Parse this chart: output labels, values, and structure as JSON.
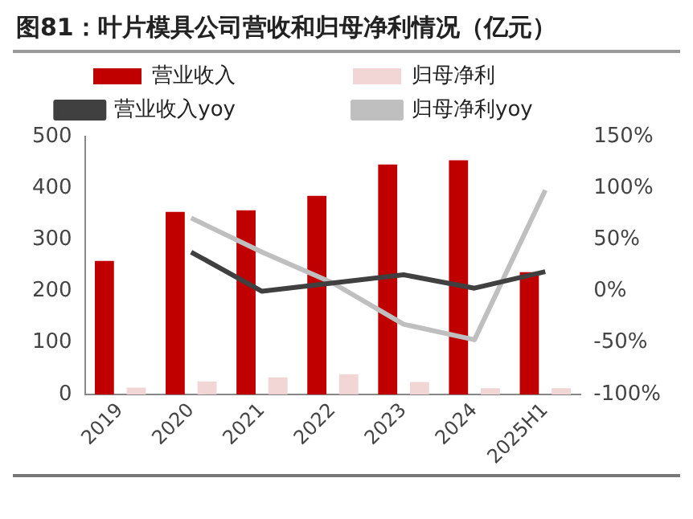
{
  "chart_data": {
    "type": "bar",
    "title": "图81：叶片模具公司营收和归母净利情况（亿元）",
    "categories": [
      "2019",
      "2020",
      "2021",
      "2022",
      "2023",
      "2024",
      "2025H1"
    ],
    "series": [
      {
        "name": "营业收入",
        "color": "#c00000",
        "values": [
          259,
          354,
          357,
          385,
          446,
          454,
          237
        ]
      },
      {
        "name": "归母净利",
        "color": "#f2d5d5",
        "values": [
          13,
          25,
          33,
          39,
          24,
          12,
          12
        ]
      },
      {
        "name": "营业收入yoy",
        "type": "line",
        "axis": "y2",
        "color": "#404040",
        "values": [
          null,
          38,
          0,
          8,
          16,
          3,
          19
        ]
      },
      {
        "name": "归母净利yoy",
        "type": "line",
        "axis": "y2",
        "color": "#bfbfbf",
        "values": [
          null,
          71,
          38,
          8,
          -32,
          -47,
          98
        ]
      }
    ],
    "ylim": [
      0,
      500
    ],
    "yticks": [
      0,
      100,
      200,
      300,
      400,
      500
    ],
    "y2lim": [
      -100,
      150
    ],
    "y2ticks": [
      {
        "value": -100,
        "label": "-100%"
      },
      {
        "value": -50,
        "label": "-50%"
      },
      {
        "value": 0,
        "label": "0%"
      },
      {
        "value": 50,
        "label": "50%"
      },
      {
        "value": 100,
        "label": "100%"
      },
      {
        "value": 150,
        "label": "150%"
      }
    ],
    "legend": "top",
    "grid": false,
    "marker": "none"
  }
}
